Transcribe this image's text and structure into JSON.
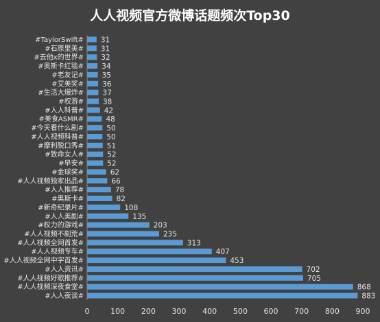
{
  "chart_data": {
    "type": "bar",
    "orientation": "horizontal",
    "title": "人人视频官方微博话题频次Top30",
    "xlabel": "",
    "ylabel": "",
    "xlim": [
      0,
      900
    ],
    "xticks": [
      0,
      100,
      200,
      300,
      400,
      500,
      600,
      700,
      800,
      900
    ],
    "grid": false,
    "legend": "none",
    "bar_color": "#5b9bd5",
    "background": "#414141",
    "categories": [
      "#TaylorSwift#",
      "#石原里美#",
      "#去他x的世界#",
      "#奥斯卡红毯#",
      "#老友记#",
      "#艾美奖#",
      "#生活大爆炸#",
      "#权游#",
      "#人人科普#",
      "#美食ASMR#",
      "#今天看什么剧#",
      "#人人视频科普#",
      "#摩利脱口秀#",
      "#致命女人#",
      "#早安#",
      "#金球奖#",
      "#人人视频独家出品#",
      "#人人推荐#",
      "#奥斯卡#",
      "#新奇纪录片#",
      "#人人美剧#",
      "#权力的游戏#",
      "#人人视频不剧荒#",
      "#人人视频全网首发#",
      "#人人视频专车#",
      "#人人视频全网中字首发#",
      "#人人资讯#",
      "#人人视频好歌推荐#",
      "#人人视频深夜食堂#",
      "#人人夜谈#"
    ],
    "values": [
      31,
      31,
      32,
      34,
      35,
      36,
      37,
      38,
      42,
      48,
      50,
      50,
      51,
      52,
      52,
      62,
      66,
      78,
      82,
      108,
      135,
      203,
      235,
      313,
      407,
      453,
      702,
      705,
      868,
      883
    ]
  }
}
